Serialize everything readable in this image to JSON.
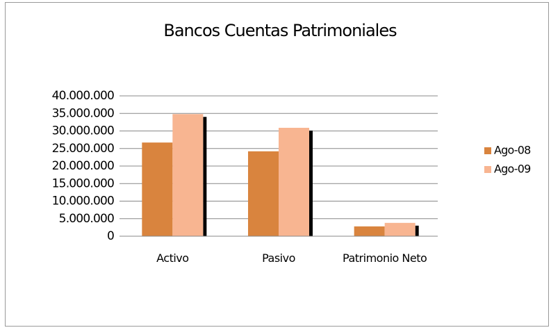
{
  "chart_data": {
    "type": "bar",
    "title": "Bancos Cuentas Patrimoniales",
    "categories": [
      "Activo",
      "Pasivo",
      "Patrimonio Neto"
    ],
    "series": [
      {
        "name": "Ago-08",
        "color": "#d9843e",
        "values": [
          26700000,
          24200000,
          2800000
        ]
      },
      {
        "name": "Ago-09",
        "color": "#f8b591",
        "values": [
          34800000,
          30900000,
          3800000
        ]
      }
    ],
    "ylim": [
      0,
      40000000
    ],
    "yticks": [
      0,
      {
        "value": 5000000,
        "label": "5.000.000"
      },
      {
        "value": 10000000,
        "label": "10.000.000"
      },
      {
        "value": 15000000,
        "label": "15.000.000"
      },
      {
        "value": 20000000,
        "label": "20.000.000"
      },
      {
        "value": 25000000,
        "label": "25.000.000"
      },
      {
        "value": 30000000,
        "label": "30.000.000"
      },
      {
        "value": 35000000,
        "label": "35.000.000"
      },
      {
        "value": 40000000,
        "label": "40.000.000"
      }
    ],
    "grid": true,
    "legend": "right"
  }
}
